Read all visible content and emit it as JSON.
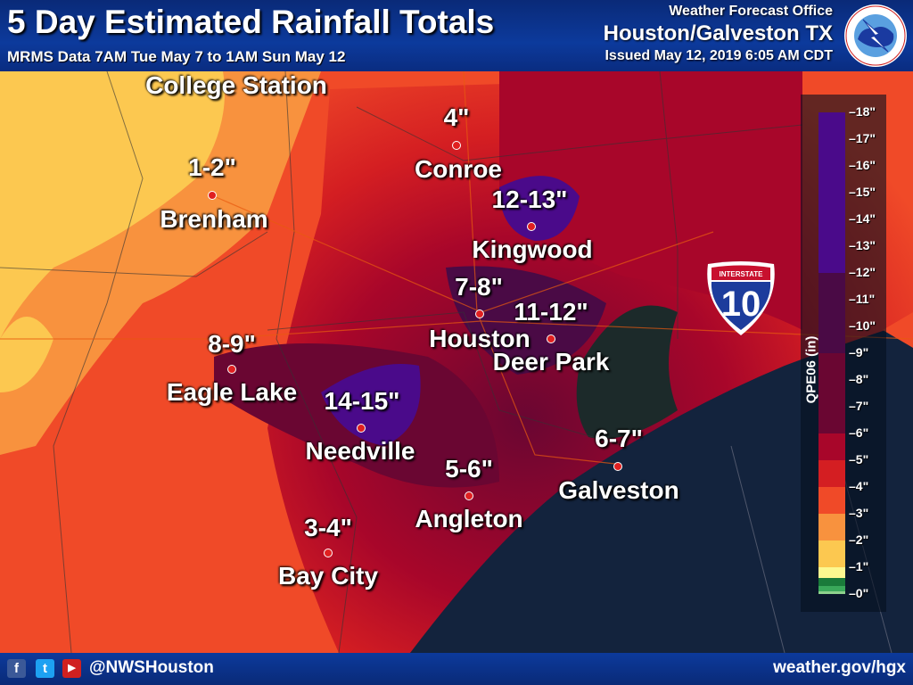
{
  "header": {
    "title": "5 Day Estimated Rainfall Totals",
    "subtitle": "MRMS Data 7AM Tue May 7 to 1AM Sun May 12",
    "office_line1": "Weather Forecast Office",
    "office_line2": "Houston/Galveston TX",
    "issued": "Issued May 12, 2019 6:05 AM CDT",
    "logo": "NATIONAL WEATHER SERVICE"
  },
  "map": {
    "highway_shield": {
      "top": "INTERSTATE",
      "number": "10"
    },
    "locations": [
      {
        "name": "College Station",
        "amount": ""
      },
      {
        "name": "Conroe",
        "amount": "4\""
      },
      {
        "name": "Brenham",
        "amount": "1-2\""
      },
      {
        "name": "Kingwood",
        "amount": "12-13\""
      },
      {
        "name": "Houston",
        "amount": "7-8\""
      },
      {
        "name": "Deer Park",
        "amount": "11-12\""
      },
      {
        "name": "Eagle Lake",
        "amount": "8-9\""
      },
      {
        "name": "Needville",
        "amount": "14-15\""
      },
      {
        "name": "Angleton",
        "amount": "5-6\""
      },
      {
        "name": "Galveston",
        "amount": "6-7\""
      },
      {
        "name": "Bay City",
        "amount": "3-4\""
      }
    ]
  },
  "legend": {
    "title": "QPE06 (in)",
    "ticks": [
      "18\"",
      "17\"",
      "16\"",
      "15\"",
      "14\"",
      "13\"",
      "12\"",
      "11\"",
      "10\"",
      "9\"",
      "8\"",
      "7\"",
      "6\"",
      "5\"",
      "4\"",
      "3\"",
      "2\"",
      "1\"",
      "0\""
    ],
    "bins": [
      {
        "range": "12-18",
        "color": "#4a0a8a"
      },
      {
        "range": "9-12",
        "color": "#4a0a45"
      },
      {
        "range": "6-9",
        "color": "#6a0632"
      },
      {
        "range": "5-6",
        "color": "#a8062a"
      },
      {
        "range": "4-5",
        "color": "#d41e22"
      },
      {
        "range": "3-4",
        "color": "#f04a28"
      },
      {
        "range": "2-3",
        "color": "#f8923e"
      },
      {
        "range": "1-2",
        "color": "#fcc850"
      },
      {
        "range": "1",
        "color": "#fcf890"
      },
      {
        "range": "0.5-1",
        "color": "#1a7a3a"
      },
      {
        "range": "0.1-0.5",
        "color": "#3aa85a"
      },
      {
        "range": "0-0.1",
        "color": "#8cd08c"
      }
    ]
  },
  "footer": {
    "social": [
      "f",
      "t",
      "▶"
    ],
    "handle": "@NWSHouston",
    "website": "weather.gov/hgx"
  }
}
